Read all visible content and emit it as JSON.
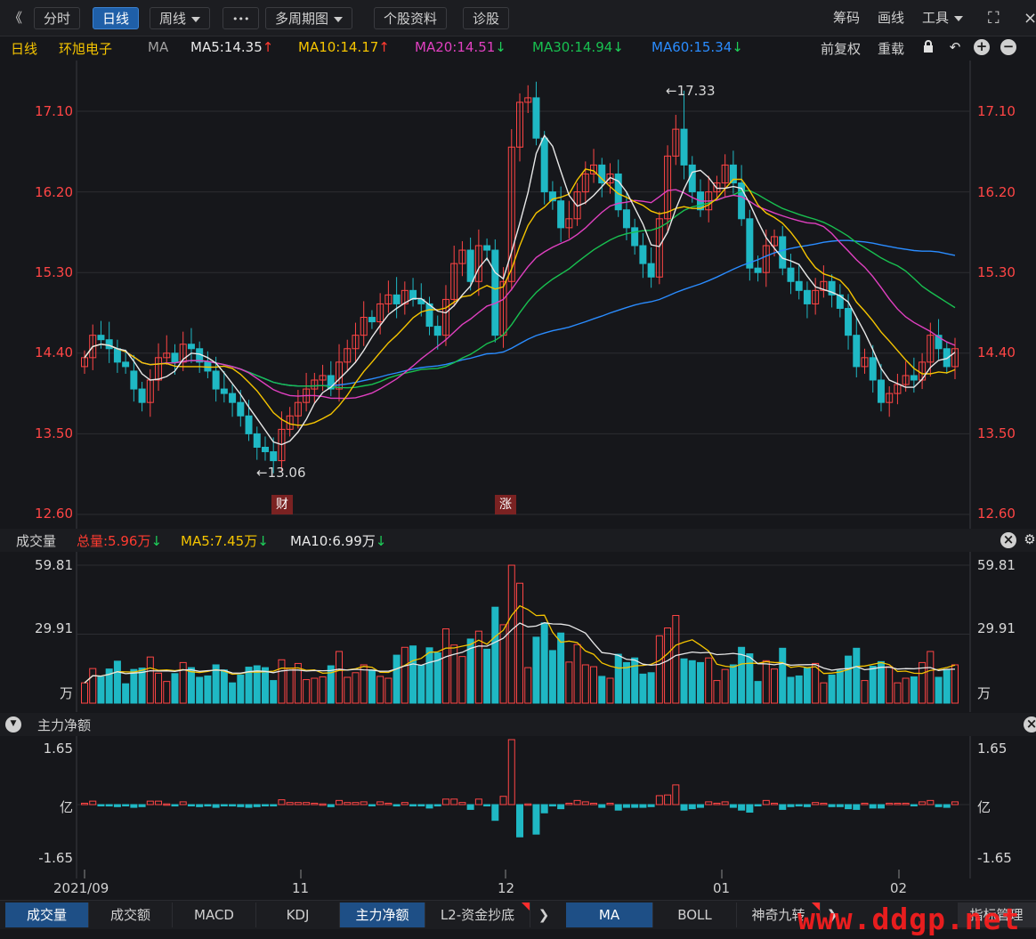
{
  "toolbar": {
    "back_icon": "double-chevron-left-icon",
    "back_glyph": "《",
    "tab_fenshi": "分时",
    "tab_rixian": "日线",
    "tab_zhouxian": "周线",
    "more_glyph": "•••",
    "multi_period": "多周期图",
    "stock_info": "个股资料",
    "diagnose": "诊股",
    "chips": "筹码",
    "draw": "画线",
    "tools": "工具",
    "fullscreen_glyph": "⛶"
  },
  "legend": {
    "period": "日线",
    "stock_name": "环旭电子",
    "ma_label": "MA",
    "ma5": "MA5:14.35",
    "ma10": "MA10:14.17",
    "ma20": "MA20:14.51",
    "ma30": "MA30:14.94",
    "ma60": "MA60:15.34",
    "adjust": "前复权",
    "reload": "重载",
    "colors": {
      "ma5": "#e8e8e8",
      "ma10": "#f5c400",
      "ma20": "#e040c0",
      "ma30": "#18c050",
      "ma60": "#2a8cff"
    }
  },
  "price_axis": [
    "17.10",
    "16.20",
    "15.30",
    "14.40",
    "13.50",
    "12.60"
  ],
  "annotations": {
    "high": "←17.33",
    "low": "←13.06",
    "badge_cai": "财",
    "badge_zhang": "涨"
  },
  "volume": {
    "title": "成交量",
    "total": "总量:5.96万",
    "ma5": "MA5:7.45万",
    "ma10": "MA10:6.99万",
    "axis": [
      "59.81",
      "29.91",
      "万"
    ]
  },
  "capital": {
    "title": "主力净额",
    "axis": [
      "1.65",
      "亿",
      "-1.65"
    ]
  },
  "date_axis": [
    "2021/09",
    "11",
    "12",
    "01",
    "02"
  ],
  "tabs_left": [
    "成交量",
    "成交额",
    "MACD",
    "KDJ",
    "主力净额",
    "L2-资金抄底"
  ],
  "tabs_right": [
    "MA",
    "BOLL",
    "神奇九转"
  ],
  "indicator_manage": "指标管理",
  "watermark": "www.ddgp.net",
  "chart_data": {
    "type": "candlestick",
    "title": "环旭电子 日线",
    "ylim": [
      12.6,
      17.6
    ],
    "yticks": [
      12.6,
      13.5,
      14.4,
      15.3,
      16.2,
      17.1
    ],
    "high": 17.33,
    "low": 13.06,
    "series_open": [
      14.25,
      14.35,
      14.6,
      14.55,
      14.45,
      14.3,
      14.2,
      14.0,
      13.85,
      14.1,
      14.35,
      14.4,
      14.3,
      14.5,
      14.45,
      14.3,
      14.2,
      14.0,
      13.95,
      13.85,
      13.7,
      13.5,
      13.35,
      13.3,
      13.2,
      13.55,
      13.7,
      13.85,
      14.0,
      14.1,
      14.15,
      14.0,
      14.3,
      14.45,
      14.6,
      14.8,
      14.75,
      14.95,
      15.05,
      14.95,
      15.1,
      15.0,
      14.95,
      14.7,
      14.6,
      15.0,
      15.4,
      15.55,
      15.2,
      15.6,
      15.55,
      14.6,
      15.2,
      16.7,
      17.2,
      17.25,
      16.8,
      16.2,
      16.1,
      15.8,
      15.9,
      16.2,
      16.4,
      16.5,
      16.3,
      16.4,
      16.0,
      15.8,
      15.6,
      15.4,
      15.25,
      15.9,
      16.6,
      16.9,
      16.5,
      16.2,
      16.0,
      16.2,
      16.3,
      16.5,
      16.3,
      15.9,
      15.35,
      15.3,
      15.6,
      15.7,
      15.35,
      15.2,
      15.1,
      14.95,
      15.1,
      15.2,
      15.05,
      14.9,
      14.6,
      14.25,
      14.35,
      14.1,
      13.85,
      13.95,
      14.05,
      14.15,
      14.1,
      14.3,
      14.6,
      14.45,
      14.25
    ],
    "series_close": [
      14.35,
      14.6,
      14.55,
      14.45,
      14.3,
      14.25,
      14.0,
      13.85,
      14.1,
      14.35,
      14.4,
      14.3,
      14.5,
      14.45,
      14.3,
      14.2,
      14.0,
      13.95,
      13.85,
      13.7,
      13.5,
      13.35,
      13.3,
      13.2,
      13.55,
      13.7,
      13.85,
      14.0,
      14.1,
      14.15,
      14.0,
      14.3,
      14.45,
      14.6,
      14.8,
      14.75,
      14.95,
      15.05,
      14.95,
      15.1,
      15.0,
      14.95,
      14.7,
      14.6,
      15.0,
      15.4,
      15.55,
      15.2,
      15.6,
      15.55,
      14.6,
      15.2,
      16.7,
      17.2,
      17.25,
      16.8,
      16.2,
      16.1,
      15.8,
      15.9,
      16.2,
      16.4,
      16.5,
      16.3,
      16.4,
      16.0,
      15.8,
      15.6,
      15.4,
      15.25,
      15.9,
      16.6,
      16.9,
      16.5,
      16.2,
      16.0,
      16.2,
      16.3,
      16.5,
      16.3,
      15.9,
      15.35,
      15.3,
      15.6,
      15.7,
      15.35,
      15.2,
      15.1,
      14.95,
      15.1,
      15.2,
      15.05,
      14.9,
      14.6,
      14.25,
      14.35,
      14.1,
      13.85,
      13.95,
      14.05,
      14.15,
      14.1,
      14.3,
      14.6,
      14.45,
      14.25,
      14.45
    ]
  }
}
